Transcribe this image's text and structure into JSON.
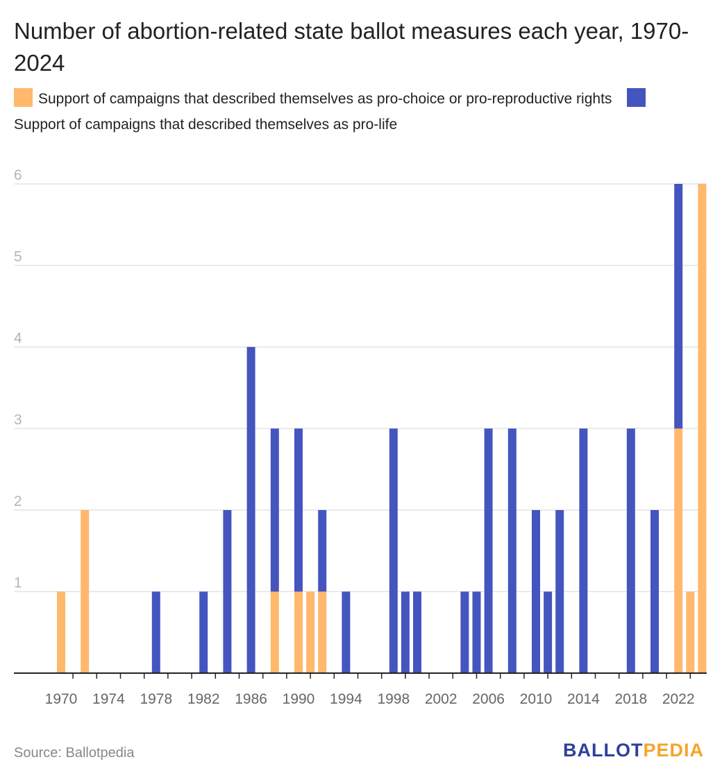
{
  "chart_data": {
    "type": "bar",
    "stacked": true,
    "title": "Number of abortion-related state ballot measures each year, 1970-2024",
    "xlabel": "",
    "ylabel": "",
    "ylim": [
      0,
      6
    ],
    "yticks": [
      1,
      2,
      3,
      4,
      5,
      6
    ],
    "grid": true,
    "legend_position": "top",
    "x_tick_labels": [
      "1970",
      "1974",
      "1978",
      "1982",
      "1986",
      "1990",
      "1994",
      "1998",
      "2002",
      "2006",
      "2010",
      "2014",
      "2018",
      "2022"
    ],
    "x": [
      1970,
      1971,
      1972,
      1973,
      1974,
      1975,
      1976,
      1977,
      1978,
      1979,
      1980,
      1981,
      1982,
      1983,
      1984,
      1985,
      1986,
      1987,
      1988,
      1989,
      1990,
      1991,
      1992,
      1993,
      1994,
      1995,
      1996,
      1997,
      1998,
      1999,
      2000,
      2001,
      2002,
      2003,
      2004,
      2005,
      2006,
      2007,
      2008,
      2009,
      2010,
      2011,
      2012,
      2013,
      2014,
      2015,
      2016,
      2017,
      2018,
      2019,
      2020,
      2021,
      2022,
      2023,
      2024
    ],
    "series": [
      {
        "name": "Support of campaigns that described themselves as pro-choice or pro-reproductive rights",
        "color": "#ffb86c",
        "values": [
          1,
          0,
          2,
          0,
          0,
          0,
          0,
          0,
          0,
          0,
          0,
          0,
          0,
          0,
          0,
          0,
          0,
          0,
          1,
          0,
          1,
          1,
          1,
          0,
          0,
          0,
          0,
          0,
          0,
          0,
          0,
          0,
          0,
          0,
          0,
          0,
          0,
          0,
          0,
          0,
          0,
          0,
          0,
          0,
          0,
          0,
          0,
          0,
          0,
          0,
          0,
          0,
          3,
          1,
          6
        ]
      },
      {
        "name": "Support of campaigns that described themselves as pro-life",
        "color": "#4555bf",
        "values": [
          0,
          0,
          0,
          0,
          0,
          0,
          0,
          0,
          1,
          0,
          0,
          0,
          1,
          0,
          2,
          0,
          4,
          0,
          2,
          0,
          2,
          0,
          1,
          0,
          1,
          0,
          0,
          0,
          3,
          1,
          1,
          0,
          0,
          0,
          1,
          1,
          3,
          0,
          3,
          0,
          2,
          1,
          2,
          0,
          3,
          0,
          0,
          0,
          3,
          0,
          2,
          0,
          3,
          0,
          0
        ]
      }
    ]
  },
  "footer": {
    "source": "Source: Ballotpedia",
    "logo_part1": "BALLOT",
    "logo_part2": "PEDIA"
  }
}
